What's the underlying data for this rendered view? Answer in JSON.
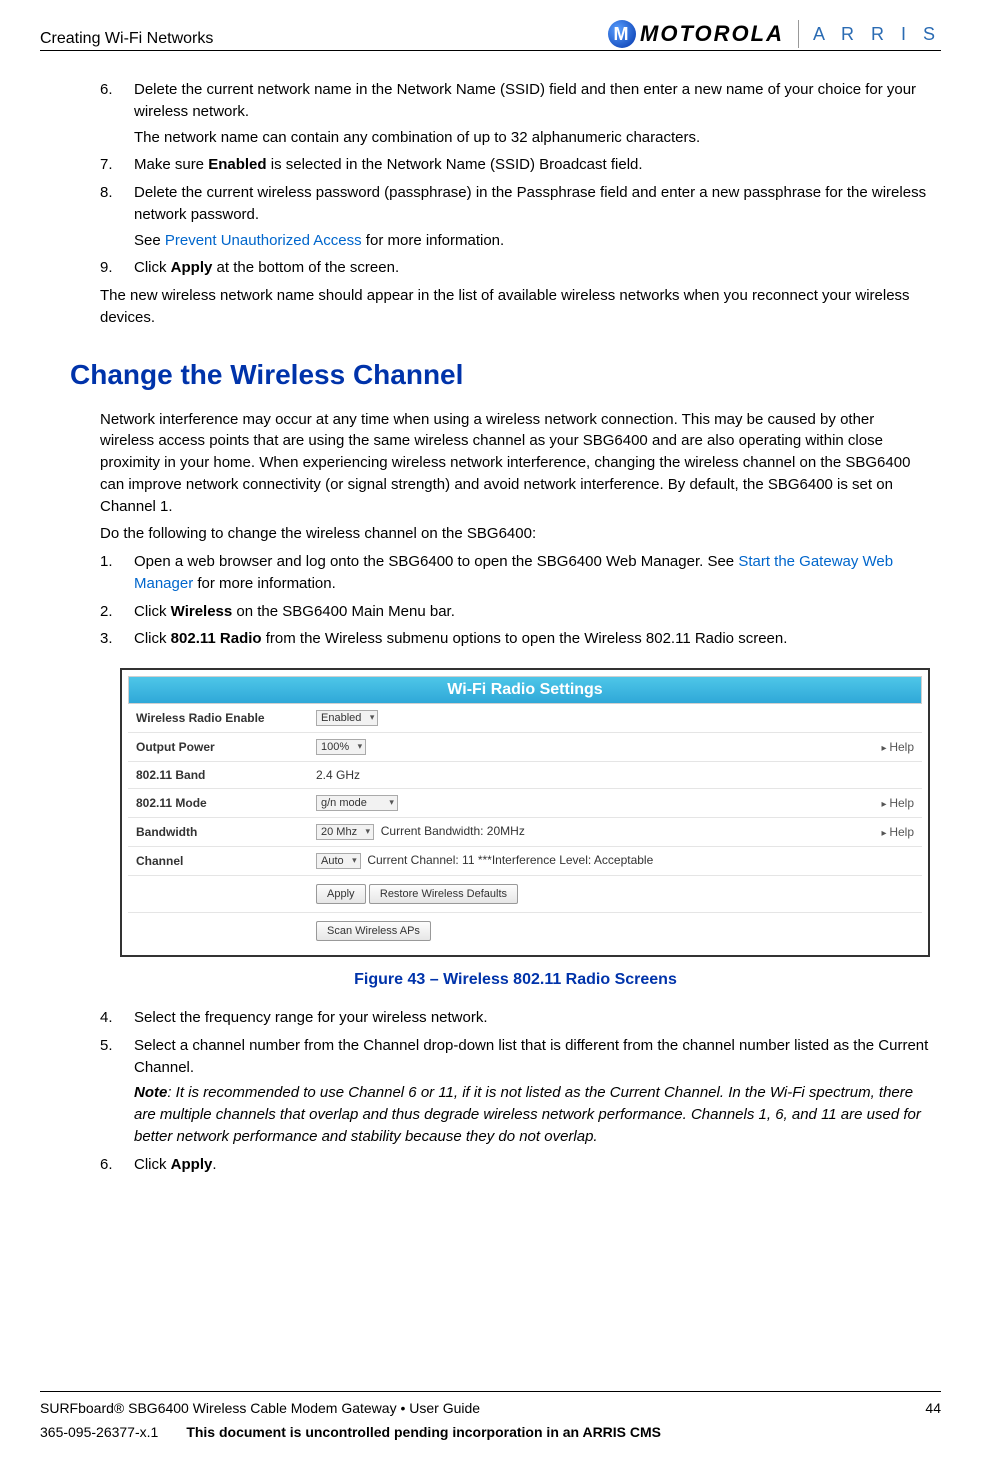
{
  "header": {
    "breadcrumb": "Creating Wi-Fi Networks",
    "logo_motorola": "MOTOROLA",
    "logo_arris": "A R R I S",
    "moto_m": "M"
  },
  "list_top": {
    "i6": {
      "n": "6.",
      "p1a": "Delete the current network name in the Network Name (SSID) field and then enter a new name of your choice for your wireless network.",
      "p2": "The network name can contain any combination of up to 32 alphanumeric characters."
    },
    "i7": {
      "n": "7.",
      "t1": "Make sure ",
      "b": "Enabled",
      "t2": " is selected in the Network Name (SSID) Broadcast field."
    },
    "i8": {
      "n": "8.",
      "p1": "Delete the current wireless password (passphrase) in the Passphrase field and enter a new passphrase for the wireless network password.",
      "p2a": "See ",
      "link": "Prevent Unauthorized Access",
      "p2b": " for more information."
    },
    "i9": {
      "n": "9.",
      "t1": "Click ",
      "b": "Apply",
      "t2": " at the bottom of the screen."
    },
    "closing": "The new wireless network name should appear in the list of available wireless networks when you reconnect your wireless devices."
  },
  "section": {
    "title": "Change the Wireless Channel",
    "intro": "Network interference may occur at any time when using a wireless network connection. This may be caused by other wireless access points that are using the same wireless channel as your SBG6400 and are also operating within close proximity in your home. When experiencing wireless network interference, changing the wireless channel on the SBG6400 can improve network connectivity (or signal strength) and avoid network interference. By default, the SBG6400 is set on Channel 1.",
    "lead": "Do the following to change the wireless channel on the SBG6400:",
    "steps": {
      "s1": {
        "n": "1.",
        "t1": "Open a web browser and log onto the SBG6400 to open the SBG6400 Web Manager. See ",
        "link": "Start the Gateway Web Manager",
        "t2": " for more information."
      },
      "s2": {
        "n": "2.",
        "t1": "Click ",
        "b": "Wireless",
        "t2": " on the SBG6400 Main Menu bar."
      },
      "s3": {
        "n": "3.",
        "t1": "Click ",
        "b": "802.11 Radio",
        "t2": " from the Wireless submenu options to open the Wireless 802.11 Radio  screen."
      }
    }
  },
  "figure": {
    "header": "Wi-Fi Radio Settings",
    "rows": {
      "r1": {
        "label": "Wireless Radio Enable",
        "sel": "Enabled",
        "help": ""
      },
      "r2": {
        "label": "Output Power",
        "sel": "100%",
        "help": "Help"
      },
      "r3": {
        "label": "802.11 Band",
        "val": "2.4 GHz",
        "help": ""
      },
      "r4": {
        "label": "802.11 Mode",
        "sel": "g/n mode",
        "help": "Help"
      },
      "r5": {
        "label": "Bandwidth",
        "sel": "20 Mhz",
        "extra": "Current Bandwidth: 20MHz",
        "help": "Help"
      },
      "r6": {
        "label": "Channel",
        "sel": "Auto",
        "extra": "Current Channel: 11 ***Interference Level: Acceptable",
        "help": ""
      }
    },
    "btns": {
      "apply": "Apply",
      "restore": "Restore Wireless Defaults",
      "scan": "Scan Wireless APs"
    },
    "caption": "Figure 43 – Wireless 802.11 Radio Screens"
  },
  "list_bottom": {
    "s4": {
      "n": "4.",
      "t": "Select the frequency range for your wireless network."
    },
    "s5": {
      "n": "5.",
      "p1": "Select a channel number from the Channel drop-down list that is different from the channel number listed as the Current Channel.",
      "noteb": "Note",
      "notet": ": It is recommended to use Channel 6 or 11, if it is not listed as the Current Channel. In the Wi-Fi spectrum, there are multiple channels that overlap and thus degrade wireless network performance. Channels 1, 6, and 11 are used for better network performance and stability because they do not overlap."
    },
    "s6": {
      "n": "6.",
      "t1": "Click ",
      "b": "Apply",
      "t2": "."
    }
  },
  "footer": {
    "line1": "SURFboard® SBG6400 Wireless Cable Modem Gateway • User Guide",
    "page": "44",
    "docno": "365-095-26377-x.1",
    "notice": "This document is uncontrolled pending incorporation in an ARRIS CMS"
  }
}
